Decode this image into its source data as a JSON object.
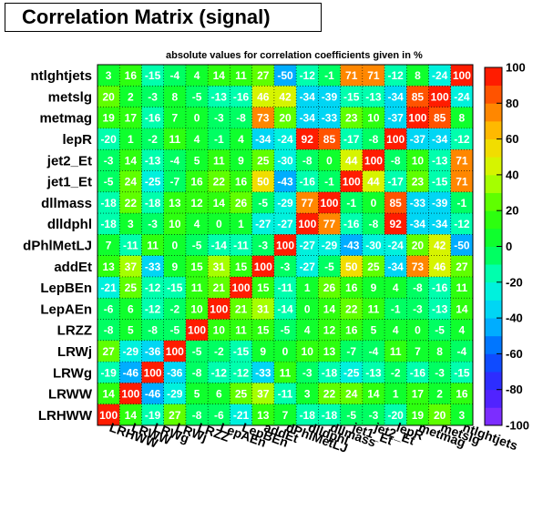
{
  "chart_data": {
    "type": "heatmap",
    "title": "Correlation Matrix (signal)",
    "subtitle": "absolute values for correlation coefficients given in %",
    "variables": [
      "LRHWW",
      "LRWW",
      "LRWg",
      "LRWj",
      "LRZZ",
      "LepAEn",
      "LepBEn",
      "addEt",
      "dPhlMetLJ",
      "dlldphl",
      "dllmass",
      "jet1_Et",
      "jet2_Et",
      "lepR",
      "metmag",
      "metslg",
      "ntlghtjets"
    ],
    "rows_top_to_bottom": [
      "ntlghtjets",
      "metslg",
      "metmag",
      "lepR",
      "jet2_Et",
      "jet1_Et",
      "dllmass",
      "dlldphl",
      "dPhlMetLJ",
      "addEt",
      "LepBEn",
      "LepAEn",
      "LRZZ",
      "LRWj",
      "LRWg",
      "LRWW",
      "LRHWW"
    ],
    "matrix_top_to_bottom": [
      [
        3,
        16,
        -15,
        -4,
        4,
        14,
        11,
        27,
        -50,
        -12,
        -1,
        71,
        71,
        -12,
        8,
        -24,
        100
      ],
      [
        20,
        2,
        -3,
        8,
        -5,
        -13,
        -16,
        46,
        42,
        -34,
        -39,
        -15,
        -13,
        -34,
        85,
        100,
        -24
      ],
      [
        19,
        17,
        -16,
        7,
        0,
        -3,
        -8,
        73,
        20,
        -34,
        -33,
        23,
        10,
        -37,
        100,
        85,
        8
      ],
      [
        -20,
        1,
        -2,
        11,
        4,
        -1,
        4,
        -34,
        -24,
        92,
        85,
        -17,
        -8,
        100,
        -37,
        -34,
        -12
      ],
      [
        -3,
        14,
        -13,
        -4,
        5,
        11,
        9,
        25,
        -30,
        -8,
        0,
        44,
        100,
        -8,
        10,
        -13,
        71
      ],
      [
        -5,
        24,
        -25,
        -7,
        16,
        22,
        16,
        50,
        -43,
        -16,
        -1,
        100,
        44,
        -17,
        23,
        -15,
        71
      ],
      [
        -18,
        22,
        -18,
        13,
        12,
        14,
        26,
        -5,
        -29,
        77,
        100,
        -1,
        0,
        85,
        -33,
        -39,
        -1
      ],
      [
        -18,
        3,
        -3,
        10,
        4,
        0,
        1,
        -27,
        -27,
        100,
        77,
        -16,
        -8,
        92,
        -34,
        -34,
        -12
      ],
      [
        7,
        -11,
        11,
        0,
        -5,
        -14,
        -11,
        -3,
        100,
        -27,
        -29,
        -43,
        -30,
        -24,
        20,
        42,
        -50
      ],
      [
        13,
        37,
        -33,
        9,
        15,
        31,
        15,
        100,
        -3,
        -27,
        -5,
        50,
        25,
        -34,
        73,
        46,
        27
      ],
      [
        -21,
        25,
        -12,
        -15,
        11,
        21,
        100,
        15,
        -11,
        1,
        26,
        16,
        9,
        4,
        -8,
        -16,
        11
      ],
      [
        -6,
        6,
        -12,
        -2,
        10,
        100,
        21,
        31,
        -14,
        0,
        14,
        22,
        11,
        -1,
        -3,
        -13,
        14
      ],
      [
        -8,
        5,
        -8,
        -5,
        100,
        10,
        11,
        15,
        -5,
        4,
        12,
        16,
        5,
        4,
        0,
        -5,
        4
      ],
      [
        27,
        -29,
        -36,
        100,
        -5,
        -2,
        -15,
        9,
        0,
        10,
        13,
        -7,
        -4,
        11,
        7,
        8,
        -4
      ],
      [
        -19,
        -46,
        100,
        -36,
        -8,
        -12,
        -12,
        -33,
        11,
        -3,
        -18,
        -25,
        -13,
        -2,
        -16,
        -3,
        -15
      ],
      [
        14,
        100,
        -46,
        -29,
        5,
        6,
        25,
        37,
        -11,
        3,
        22,
        24,
        14,
        1,
        17,
        2,
        16
      ],
      [
        100,
        14,
        -19,
        27,
        -8,
        -6,
        -21,
        13,
        7,
        -18,
        -18,
        -5,
        -3,
        -20,
        19,
        20,
        3
      ]
    ],
    "zlim": [
      -100,
      100
    ],
    "z_ticks": [
      -100,
      -80,
      -60,
      -40,
      -20,
      0,
      20,
      40,
      60,
      80,
      100
    ],
    "colorscale": "rainbow (violet-blue-cyan-green-yellow-red)",
    "grid": true,
    "legend": "color bar right"
  }
}
